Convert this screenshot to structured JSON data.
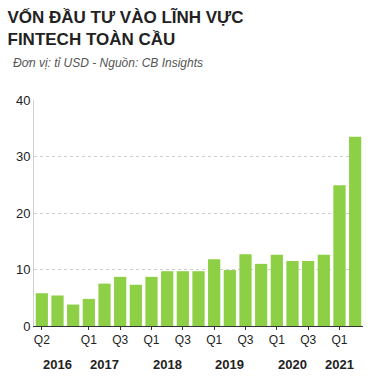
{
  "chart_data": {
    "type": "bar",
    "title": "VỐN ĐẦU TƯ VÀO LĨNH VỰC\nFINTECH TOÀN CẦU",
    "subtitle": "Đơn vị: tỉ USD - Nguồn: CB Insights",
    "categories": [
      "Q2",
      null,
      null,
      "Q1",
      null,
      "Q3",
      null,
      "Q1",
      null,
      "Q3",
      null,
      "Q1",
      null,
      "Q3",
      null,
      "Q1",
      null,
      "Q3",
      null,
      "Q1",
      null
    ],
    "values": [
      5.8,
      5.4,
      3.8,
      4.8,
      7.5,
      8.7,
      7.3,
      8.7,
      9.7,
      9.7,
      9.7,
      11.8,
      9.9,
      12.7,
      11.0,
      12.6,
      11.5,
      11.5,
      12.6,
      24.9,
      33.5
    ],
    "color": "#8dcf45",
    "ylim": [
      0,
      40
    ],
    "yticks": [
      0,
      10,
      20,
      30,
      40
    ],
    "grid": true,
    "annotations": [
      {
        "text": "2016",
        "x": 1
      },
      {
        "text": "2017",
        "x": 4
      },
      {
        "text": "2018",
        "x": 8
      },
      {
        "text": "2019",
        "x": 12
      },
      {
        "text": "2020",
        "x": 16
      },
      {
        "text": "2021",
        "x": 19
      }
    ]
  }
}
